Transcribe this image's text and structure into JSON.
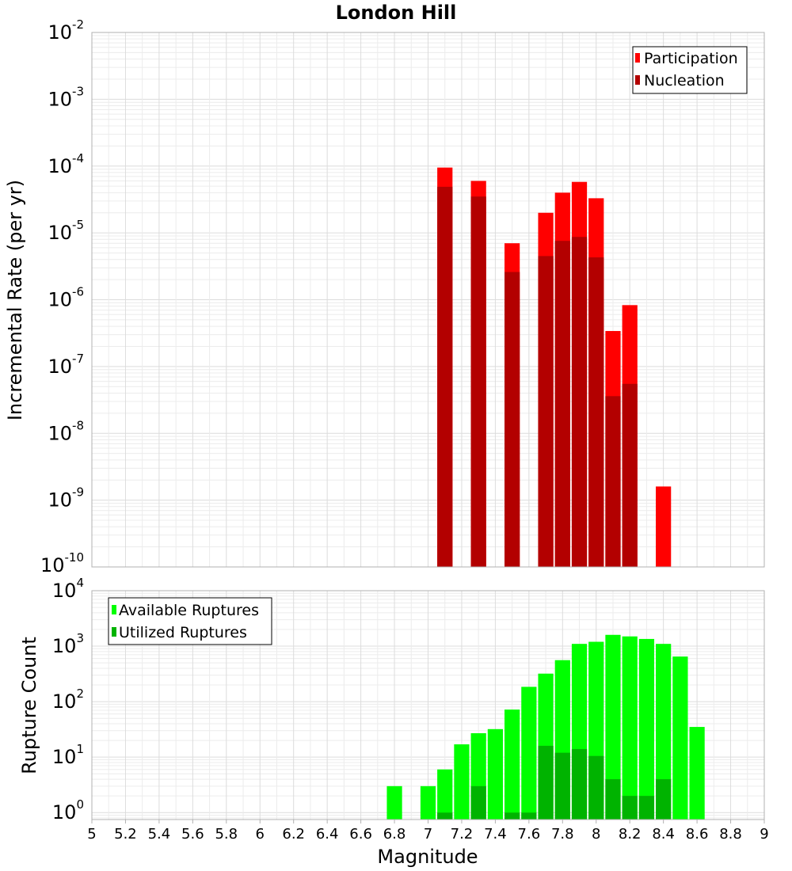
{
  "chart_data": [
    {
      "type": "bar",
      "title": "London Hill",
      "xlabel": "",
      "ylabel": "Incremental Rate (per yr)",
      "yscale": "log",
      "ylim": [
        1e-10,
        0.01
      ],
      "xlim": [
        5,
        9
      ],
      "grid": true,
      "legend_position": "top-right",
      "series": [
        {
          "name": "Participation",
          "color": "#ff0000",
          "x": [
            7.1,
            7.3,
            7.5,
            7.7,
            7.8,
            7.9,
            8.0,
            8.1,
            8.2,
            8.4
          ],
          "values": [
            9.5e-05,
            6e-05,
            7e-06,
            2e-05,
            4e-05,
            5.8e-05,
            3.3e-05,
            3.4e-07,
            8.3e-07,
            1.6e-09
          ]
        },
        {
          "name": "Nucleation",
          "color": "#b30000",
          "x": [
            7.1,
            7.3,
            7.5,
            7.7,
            7.8,
            7.9,
            8.0,
            8.1,
            8.2
          ],
          "values": [
            4.9e-05,
            3.5e-05,
            2.6e-06,
            4.5e-06,
            7.6e-06,
            8.7e-06,
            4.3e-06,
            3.6e-08,
            5.5e-08
          ]
        }
      ],
      "y_ticks": [
        {
          "base": "10",
          "exp": "-2"
        },
        {
          "base": "10",
          "exp": "-3"
        },
        {
          "base": "10",
          "exp": "-4"
        },
        {
          "base": "10",
          "exp": "-5"
        },
        {
          "base": "10",
          "exp": "-6"
        },
        {
          "base": "10",
          "exp": "-7"
        },
        {
          "base": "10",
          "exp": "-8"
        },
        {
          "base": "10",
          "exp": "-9"
        },
        {
          "base": "10",
          "exp": "-10"
        }
      ]
    },
    {
      "type": "bar",
      "title": "",
      "xlabel": "Magnitude",
      "ylabel": "Rupture Count",
      "yscale": "log",
      "ylim": [
        0.75,
        10000
      ],
      "xlim": [
        5,
        9
      ],
      "grid": true,
      "legend_position": "top-left",
      "series": [
        {
          "name": "Available Ruptures",
          "color": "#00ff00",
          "x": [
            6.8,
            7.0,
            7.1,
            7.2,
            7.3,
            7.4,
            7.5,
            7.6,
            7.7,
            7.8,
            7.9,
            8.0,
            8.1,
            8.2,
            8.3,
            8.4,
            8.5,
            8.6
          ],
          "values": [
            3,
            3,
            6,
            17,
            27,
            32,
            72,
            185,
            320,
            560,
            1100,
            1200,
            1600,
            1500,
            1350,
            1100,
            650,
            35
          ]
        },
        {
          "name": "Utilized Ruptures",
          "color": "#00b300",
          "x": [
            7.1,
            7.3,
            7.5,
            7.6,
            7.7,
            7.8,
            7.9,
            8.0,
            8.1,
            8.2,
            8.3,
            8.4
          ],
          "values": [
            1,
            3,
            1,
            1,
            16,
            12,
            14,
            10.5,
            4,
            2,
            2,
            4
          ]
        }
      ],
      "y_ticks": [
        {
          "base": "10",
          "exp": "4"
        },
        {
          "base": "10",
          "exp": "3"
        },
        {
          "base": "10",
          "exp": "2"
        },
        {
          "base": "10",
          "exp": "1"
        },
        {
          "base": "10",
          "exp": "0"
        }
      ]
    }
  ],
  "x_ticks": [
    "5",
    "5.2",
    "5.4",
    "5.6",
    "5.8",
    "6",
    "6.2",
    "6.4",
    "6.6",
    "6.8",
    "7",
    "7.2",
    "7.4",
    "7.6",
    "7.8",
    "8",
    "8.2",
    "8.4",
    "8.6",
    "8.8",
    "9"
  ]
}
